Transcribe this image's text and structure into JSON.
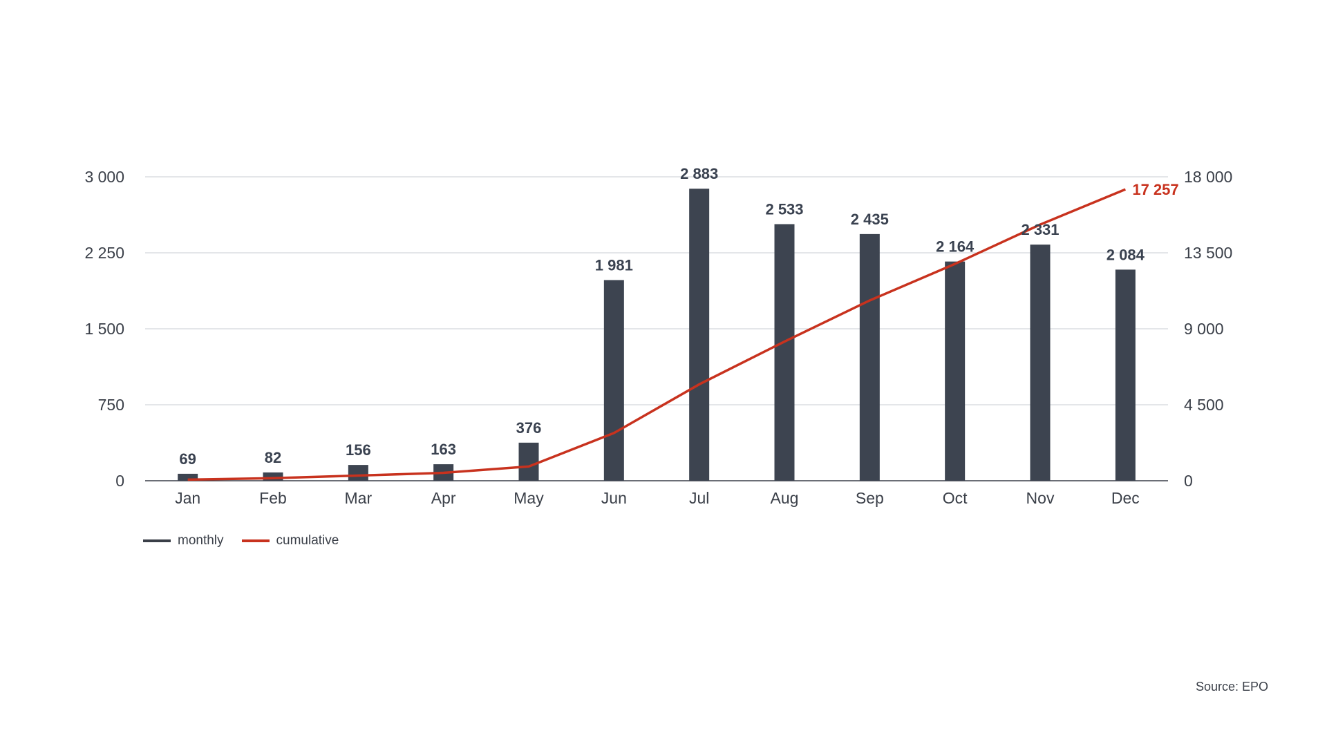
{
  "chart_data": {
    "type": "bar",
    "categories": [
      "Jan",
      "Feb",
      "Mar",
      "Apr",
      "May",
      "Jun",
      "Jul",
      "Aug",
      "Sep",
      "Oct",
      "Nov",
      "Dec"
    ],
    "series": [
      {
        "name": "monthly",
        "type": "bar",
        "axis": "left",
        "values": [
          69,
          82,
          156,
          163,
          376,
          1981,
          2883,
          2533,
          2435,
          2164,
          2331,
          2084
        ],
        "labels": [
          "69",
          "82",
          "156",
          "163",
          "376",
          "1 981",
          "2 883",
          "2 533",
          "2 435",
          "2 164",
          "2 331",
          "2 084"
        ]
      },
      {
        "name": "cumulative",
        "type": "line",
        "axis": "right",
        "values": [
          69,
          151,
          307,
          470,
          846,
          2827,
          5710,
          8243,
          10678,
          12842,
          15173,
          17257
        ],
        "end_label": "17 257"
      }
    ],
    "y_left": {
      "ylim": [
        0,
        3000
      ],
      "ticks": [
        0,
        750,
        1500,
        2250,
        3000
      ],
      "tick_labels": [
        "0",
        "750",
        "1 500",
        "2 250",
        "3 000"
      ]
    },
    "y_right": {
      "ylim": [
        0,
        18000
      ],
      "ticks": [
        0,
        4500,
        9000,
        13500,
        18000
      ],
      "tick_labels": [
        "0",
        "4 500",
        "9 000",
        "13 500",
        "18 000"
      ]
    },
    "grid": true,
    "legend_position": "bottom-left"
  },
  "colors": {
    "bar": "#3d4450",
    "line": "#c8321e",
    "grid": "#c9ccd3",
    "axis": "#3a3f48"
  },
  "source": "Source: EPO"
}
